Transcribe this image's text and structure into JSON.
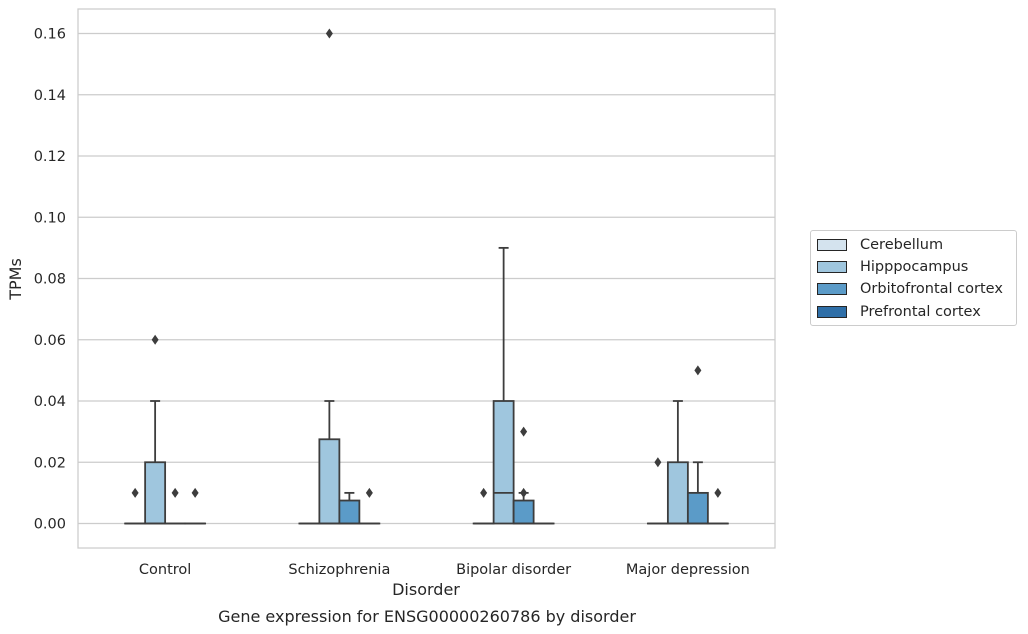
{
  "chart_data": {
    "type": "box",
    "caption": "Gene expression for ENSG00000260786 by disorder",
    "xlabel": "Disorder",
    "ylabel": "TPMs",
    "ylim": [
      -0.008,
      0.168
    ],
    "yticks": [
      "0.00",
      "0.02",
      "0.04",
      "0.06",
      "0.08",
      "0.10",
      "0.12",
      "0.14",
      "0.16"
    ],
    "categories": [
      "Control",
      "Schizophrenia",
      "Bipolar disorder",
      "Major depression"
    ],
    "grid": "horizontal",
    "legend_position": "right",
    "series": [
      {
        "name": "Cerebellum",
        "color": "#d4e3ee",
        "boxes": [
          {
            "min": 0,
            "q1": 0,
            "median": 0,
            "q3": 0,
            "max": 0,
            "outliers": [
              0.01
            ]
          },
          {
            "min": 0,
            "q1": 0,
            "median": 0,
            "q3": 0,
            "max": 0,
            "outliers": []
          },
          {
            "min": 0,
            "q1": 0,
            "median": 0,
            "q3": 0,
            "max": 0,
            "outliers": [
              0.01
            ]
          },
          {
            "min": 0,
            "q1": 0,
            "median": 0,
            "q3": 0,
            "max": 0,
            "outliers": [
              0.02
            ]
          }
        ]
      },
      {
        "name": "Hipppocampus",
        "color": "#9fc6de",
        "boxes": [
          {
            "min": 0,
            "q1": 0,
            "median": 0,
            "q3": 0.02,
            "max": 0.04,
            "outliers": [
              0.06
            ]
          },
          {
            "min": 0,
            "q1": 0,
            "median": 0,
            "q3": 0.0275,
            "max": 0.04,
            "outliers": [
              0.16
            ]
          },
          {
            "min": 0,
            "q1": 0,
            "median": 0.01,
            "q3": 0.04,
            "max": 0.09,
            "outliers": []
          },
          {
            "min": 0,
            "q1": 0,
            "median": 0,
            "q3": 0.02,
            "max": 0.04,
            "outliers": []
          }
        ]
      },
      {
        "name": "Orbitofrontal cortex",
        "color": "#5b9bc8",
        "boxes": [
          {
            "min": 0,
            "q1": 0,
            "median": 0,
            "q3": 0,
            "max": 0,
            "outliers": [
              0.01
            ]
          },
          {
            "min": 0,
            "q1": 0,
            "median": 0,
            "q3": 0.0075,
            "max": 0.01,
            "outliers": []
          },
          {
            "min": 0,
            "q1": 0,
            "median": 0,
            "q3": 0.0075,
            "max": 0.01,
            "outliers": [
              0.03,
              0.01
            ]
          },
          {
            "min": 0,
            "q1": 0,
            "median": 0,
            "q3": 0.01,
            "max": 0.02,
            "outliers": [
              0.05
            ]
          }
        ]
      },
      {
        "name": "Prefrontal cortex",
        "color": "#2f6fa8",
        "boxes": [
          {
            "min": 0,
            "q1": 0,
            "median": 0,
            "q3": 0,
            "max": 0,
            "outliers": [
              0.01
            ]
          },
          {
            "min": 0,
            "q1": 0,
            "median": 0,
            "q3": 0,
            "max": 0,
            "outliers": [
              0.01
            ]
          },
          {
            "min": 0,
            "q1": 0,
            "median": 0,
            "q3": 0,
            "max": 0,
            "outliers": []
          },
          {
            "min": 0,
            "q1": 0,
            "median": 0,
            "q3": 0,
            "max": 0,
            "outliers": [
              0.01
            ]
          }
        ]
      }
    ]
  }
}
